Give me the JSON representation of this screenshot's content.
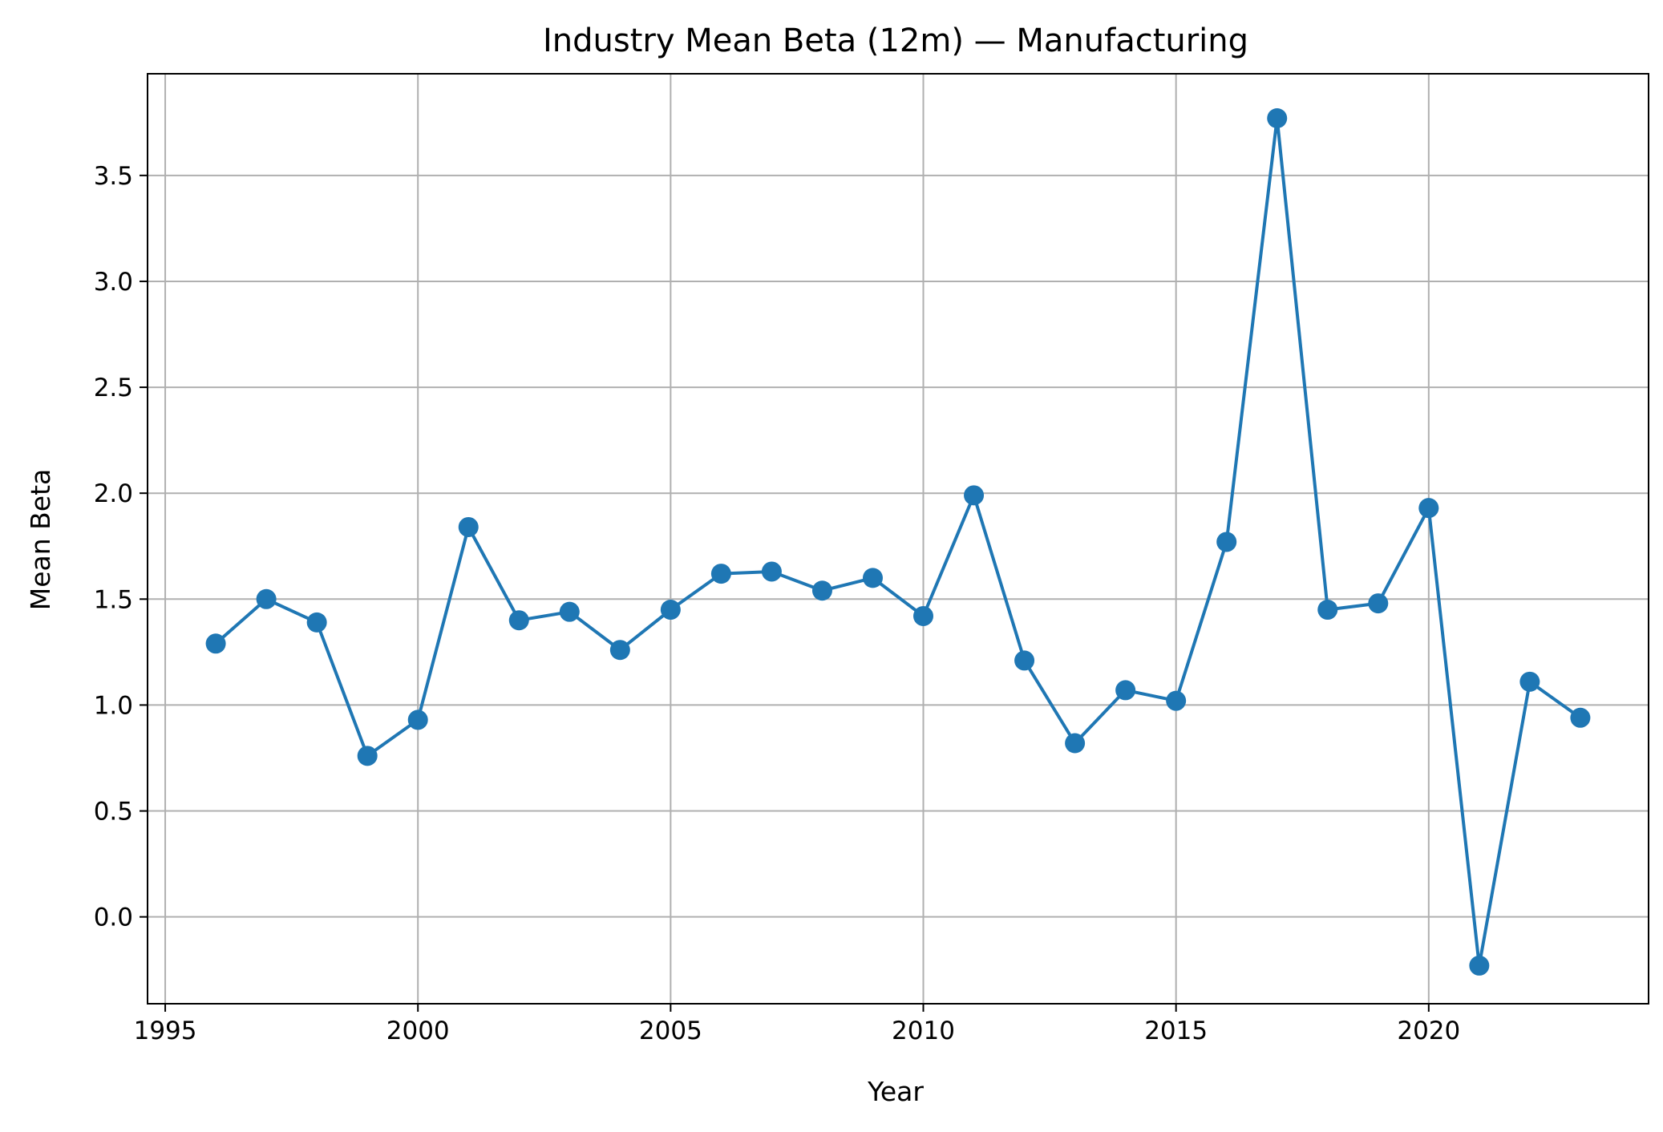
{
  "chart_data": {
    "type": "line",
    "title": "Industry Mean Beta (12m) — Manufacturing",
    "xlabel": "Year",
    "ylabel": "Mean Beta",
    "xlim": [
      1994.65,
      2024.35
    ],
    "ylim": [
      -0.41,
      3.98
    ],
    "x_ticks": [
      1995,
      2000,
      2005,
      2010,
      2015,
      2020
    ],
    "x_tick_labels": [
      "1995",
      "2000",
      "2005",
      "2010",
      "2015",
      "2020"
    ],
    "y_ticks": [
      0.0,
      0.5,
      1.0,
      1.5,
      2.0,
      2.5,
      3.0,
      3.5
    ],
    "y_tick_labels": [
      "0.0",
      "0.5",
      "1.0",
      "1.5",
      "2.0",
      "2.5",
      "3.0",
      "3.5"
    ],
    "grid": true,
    "legend": "none",
    "series": [
      {
        "color": "#1f77b4",
        "marker": "circle",
        "x": [
          1996,
          1997,
          1998,
          1999,
          2000,
          2001,
          2002,
          2003,
          2004,
          2005,
          2006,
          2007,
          2008,
          2009,
          2010,
          2011,
          2012,
          2013,
          2014,
          2015,
          2016,
          2017,
          2018,
          2019,
          2020,
          2021,
          2022,
          2023
        ],
        "y": [
          1.29,
          1.5,
          1.39,
          0.76,
          0.93,
          1.84,
          1.4,
          1.44,
          1.26,
          1.45,
          1.62,
          1.63,
          1.54,
          1.6,
          1.42,
          1.99,
          1.21,
          0.82,
          1.07,
          1.02,
          1.77,
          3.77,
          1.45,
          1.48,
          1.93,
          -0.23,
          1.11,
          0.94
        ]
      }
    ]
  }
}
